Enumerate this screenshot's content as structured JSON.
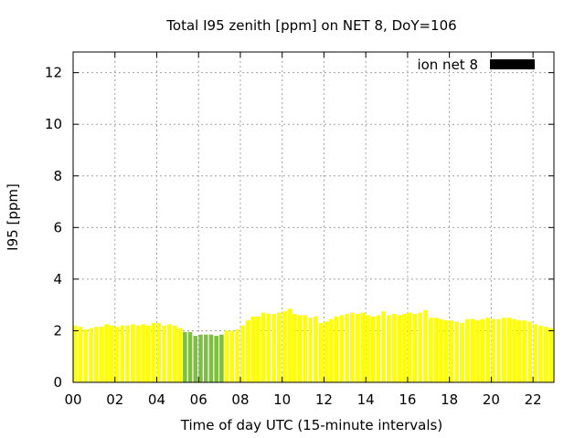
{
  "chart_data": {
    "type": "bar",
    "title": "Total I95 zenith [ppm] on NET 8, DoY=106",
    "xlabel": "Time of day UTC (15-minute intervals)",
    "ylabel": "I95 [ppm]",
    "xlim": [
      0,
      23
    ],
    "ylim": [
      0,
      12.8
    ],
    "x_ticks": [
      0,
      2,
      4,
      6,
      8,
      10,
      12,
      14,
      16,
      18,
      20,
      22
    ],
    "x_tick_labels": [
      "00",
      "02",
      "04",
      "06",
      "08",
      "10",
      "12",
      "14",
      "16",
      "18",
      "20",
      "22"
    ],
    "y_ticks": [
      0,
      2,
      4,
      6,
      8,
      10,
      12
    ],
    "y_tick_labels": [
      "0",
      "2",
      "4",
      "6",
      "8",
      "10",
      "12"
    ],
    "grid": true,
    "legend": {
      "label": "ion net 8",
      "position": "top-right",
      "color": "#000000"
    },
    "bar_width_hours": 0.2,
    "colors": {
      "normal": "#ffff00",
      "low": "#7fbf3f"
    },
    "low_threshold": 2.0,
    "series": [
      {
        "x": [
          0.0,
          0.25,
          0.5,
          0.75,
          1.0,
          1.25,
          1.5,
          1.75,
          2.0,
          2.25,
          2.5,
          2.75,
          3.0,
          3.25,
          3.5,
          3.75,
          4.0,
          4.25,
          4.5,
          4.75,
          5.0,
          5.25,
          5.5,
          5.75,
          6.0,
          6.25,
          6.5,
          6.75,
          7.0,
          7.25,
          7.5,
          7.75,
          8.0,
          8.25,
          8.5,
          8.75,
          9.0,
          9.25,
          9.5,
          9.75,
          10.0,
          10.25,
          10.5,
          10.75,
          11.0,
          11.25,
          11.5,
          11.75,
          12.0,
          12.25,
          12.5,
          12.75,
          13.0,
          13.25,
          13.5,
          13.75,
          14.0,
          14.25,
          14.5,
          14.75,
          15.0,
          15.25,
          15.5,
          15.75,
          16.0,
          16.25,
          16.5,
          16.75,
          17.0,
          17.25,
          17.5,
          17.75,
          18.0,
          18.25,
          18.5,
          18.75,
          19.0,
          19.25,
          19.5,
          19.75,
          20.0,
          20.25,
          20.5,
          20.75,
          21.0,
          21.25,
          21.5,
          21.75,
          22.0,
          22.25,
          22.5,
          22.75
        ],
        "values": [
          2.2,
          2.15,
          2.05,
          2.1,
          2.15,
          2.15,
          2.25,
          2.2,
          2.15,
          2.2,
          2.2,
          2.25,
          2.2,
          2.25,
          2.2,
          2.3,
          2.3,
          2.2,
          2.25,
          2.2,
          2.1,
          1.95,
          1.95,
          1.8,
          1.85,
          1.85,
          1.85,
          1.8,
          1.85,
          2.0,
          2.0,
          2.05,
          2.2,
          2.4,
          2.55,
          2.55,
          2.7,
          2.65,
          2.65,
          2.7,
          2.75,
          2.85,
          2.65,
          2.6,
          2.6,
          2.5,
          2.55,
          2.3,
          2.35,
          2.45,
          2.55,
          2.6,
          2.65,
          2.7,
          2.65,
          2.7,
          2.6,
          2.55,
          2.6,
          2.75,
          2.6,
          2.65,
          2.6,
          2.65,
          2.7,
          2.65,
          2.7,
          2.8,
          2.5,
          2.5,
          2.45,
          2.4,
          2.4,
          2.35,
          2.3,
          2.45,
          2.45,
          2.4,
          2.45,
          2.5,
          2.45,
          2.45,
          2.5,
          2.5,
          2.45,
          2.4,
          2.4,
          2.35,
          2.25,
          2.2,
          2.15,
          2.1
        ]
      }
    ]
  }
}
